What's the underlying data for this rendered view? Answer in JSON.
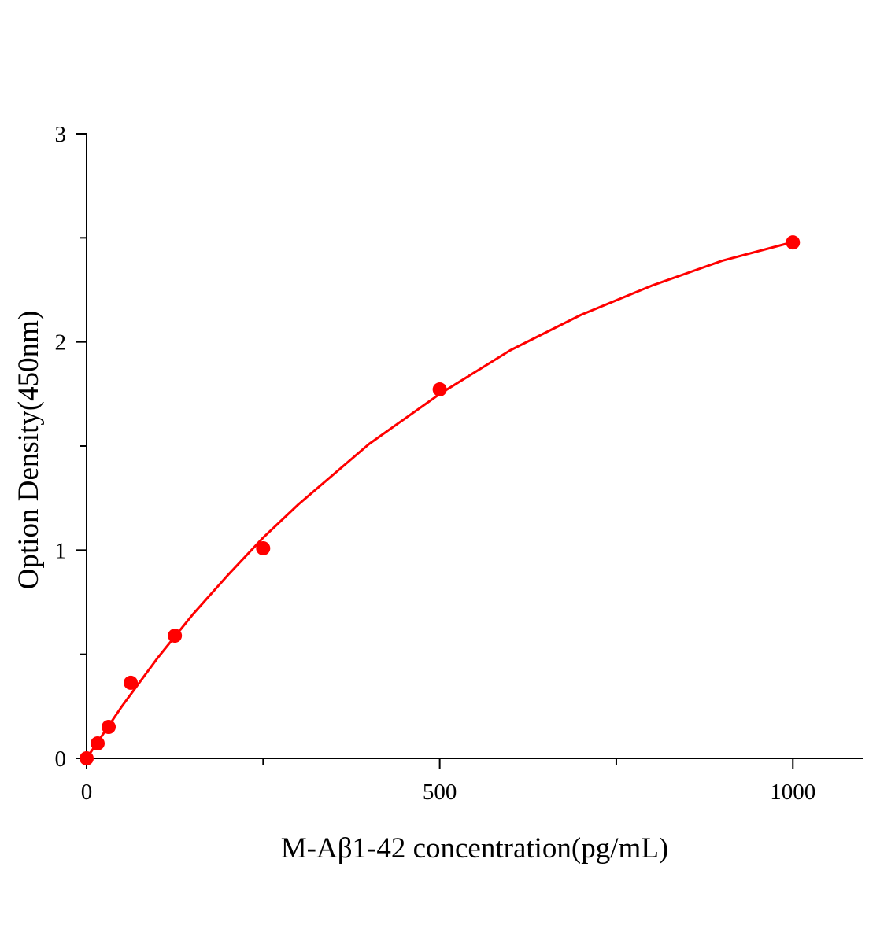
{
  "chart_data": {
    "type": "scatter",
    "xlabel": "M-Aβ1-42 concentration(pg/mL)",
    "ylabel": "Option Density(450nm)",
    "xlim": [
      0,
      1100
    ],
    "ylim": [
      0,
      3
    ],
    "xticks": [
      0,
      500,
      1000
    ],
    "yticks": [
      0,
      1,
      2,
      3
    ],
    "xminorticks": [
      250,
      750
    ],
    "yminorticks": [
      0.5,
      1.5,
      2.5
    ],
    "series": [
      {
        "type": "scatter",
        "color": "#ff0000",
        "x": [
          0,
          15.6,
          31.25,
          62.5,
          125,
          250,
          500,
          1000
        ],
        "values": [
          0,
          0.072,
          0.151,
          0.363,
          0.589,
          1.009,
          1.772,
          2.478
        ]
      },
      {
        "type": "line",
        "color": "#ff0000",
        "x": [
          0,
          50,
          100,
          150,
          200,
          250,
          300,
          400,
          500,
          600,
          700,
          800,
          900,
          1000
        ],
        "values": [
          0,
          0.25,
          0.48,
          0.69,
          0.88,
          1.06,
          1.22,
          1.51,
          1.75,
          1.96,
          2.13,
          2.27,
          2.39,
          2.48
        ]
      }
    ]
  }
}
